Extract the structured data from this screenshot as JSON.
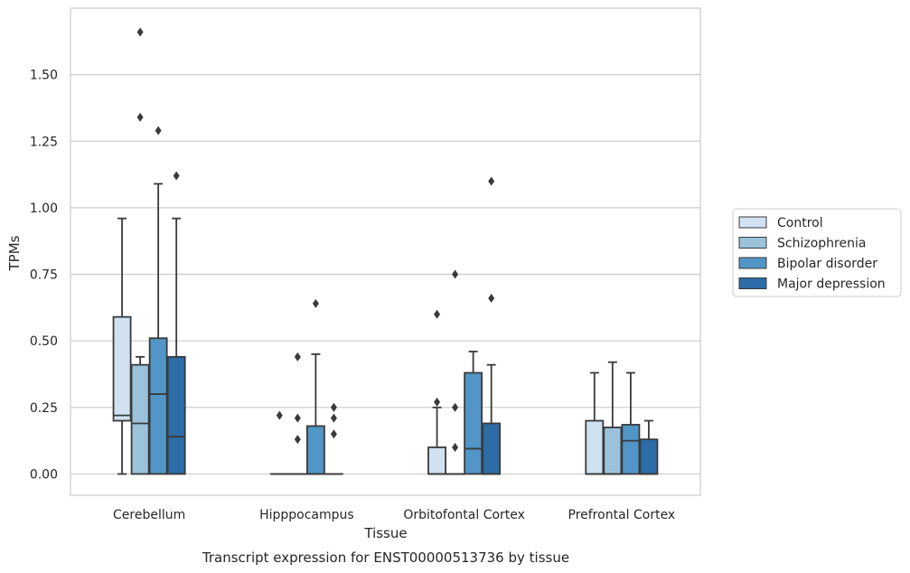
{
  "chart_data": {
    "type": "box",
    "xlabel": "Tissue",
    "ylabel": "TPMs",
    "caption": "Transcript expression for ENST00000513736 by tissue",
    "ylim": [
      -0.08,
      1.75
    ],
    "yticks": [
      "0.00",
      "0.25",
      "0.50",
      "0.75",
      "1.00",
      "1.25",
      "1.50"
    ],
    "categories": [
      "Cerebellum",
      "Hipppocampus",
      "Orbitofontal Cortex",
      "Prefrontal Cortex"
    ],
    "grid": true,
    "legend_position": "right",
    "series": [
      {
        "name": "Control",
        "color": "#d0e1f2",
        "boxes": [
          {
            "q1": 0.2,
            "median": 0.22,
            "q3": 0.59,
            "whisker_low": 0.0,
            "whisker_high": 0.96,
            "outliers": []
          },
          {
            "q1": 0.0,
            "median": 0.0,
            "q3": 0.0,
            "whisker_low": 0.0,
            "whisker_high": 0.0,
            "outliers": [
              0.22
            ]
          },
          {
            "q1": 0.0,
            "median": 0.0,
            "q3": 0.1,
            "whisker_low": 0.0,
            "whisker_high": 0.25,
            "outliers": [
              0.27,
              0.6
            ]
          },
          {
            "q1": 0.0,
            "median": 0.0,
            "q3": 0.2,
            "whisker_low": 0.0,
            "whisker_high": 0.38,
            "outliers": []
          }
        ]
      },
      {
        "name": "Schizophrenia",
        "color": "#9ac2db",
        "boxes": [
          {
            "q1": 0.0,
            "median": 0.19,
            "q3": 0.41,
            "whisker_low": 0.0,
            "whisker_high": 0.44,
            "outliers": [
              1.34,
              1.66
            ]
          },
          {
            "q1": 0.0,
            "median": 0.0,
            "q3": 0.0,
            "whisker_low": 0.0,
            "whisker_high": 0.0,
            "outliers": [
              0.13,
              0.21,
              0.44
            ]
          },
          {
            "q1": 0.0,
            "median": 0.0,
            "q3": 0.0,
            "whisker_low": 0.0,
            "whisker_high": 0.0,
            "outliers": [
              0.1,
              0.25,
              0.75
            ]
          },
          {
            "q1": 0.0,
            "median": 0.0,
            "q3": 0.175,
            "whisker_low": 0.0,
            "whisker_high": 0.42,
            "outliers": []
          }
        ]
      },
      {
        "name": "Bipolar disorder",
        "color": "#5196c6",
        "boxes": [
          {
            "q1": 0.0,
            "median": 0.3,
            "q3": 0.51,
            "whisker_low": 0.0,
            "whisker_high": 1.09,
            "outliers": [
              1.29
            ]
          },
          {
            "q1": 0.0,
            "median": 0.0,
            "q3": 0.18,
            "whisker_low": 0.0,
            "whisker_high": 0.45,
            "outliers": [
              0.64
            ]
          },
          {
            "q1": 0.0,
            "median": 0.095,
            "q3": 0.38,
            "whisker_low": 0.0,
            "whisker_high": 0.46,
            "outliers": []
          },
          {
            "q1": 0.0,
            "median": 0.125,
            "q3": 0.185,
            "whisker_low": 0.0,
            "whisker_high": 0.38,
            "outliers": []
          }
        ]
      },
      {
        "name": "Major depression",
        "color": "#2c6ca7",
        "boxes": [
          {
            "q1": 0.0,
            "median": 0.14,
            "q3": 0.44,
            "whisker_low": 0.0,
            "whisker_high": 0.96,
            "outliers": [
              1.12
            ]
          },
          {
            "q1": 0.0,
            "median": 0.0,
            "q3": 0.0,
            "whisker_low": 0.0,
            "whisker_high": 0.0,
            "outliers": [
              0.15,
              0.21,
              0.25
            ]
          },
          {
            "q1": 0.0,
            "median": 0.0,
            "q3": 0.19,
            "whisker_low": 0.0,
            "whisker_high": 0.41,
            "outliers": [
              0.66,
              1.1
            ]
          },
          {
            "q1": 0.0,
            "median": 0.0,
            "q3": 0.13,
            "whisker_low": 0.0,
            "whisker_high": 0.2,
            "outliers": []
          }
        ]
      }
    ]
  }
}
